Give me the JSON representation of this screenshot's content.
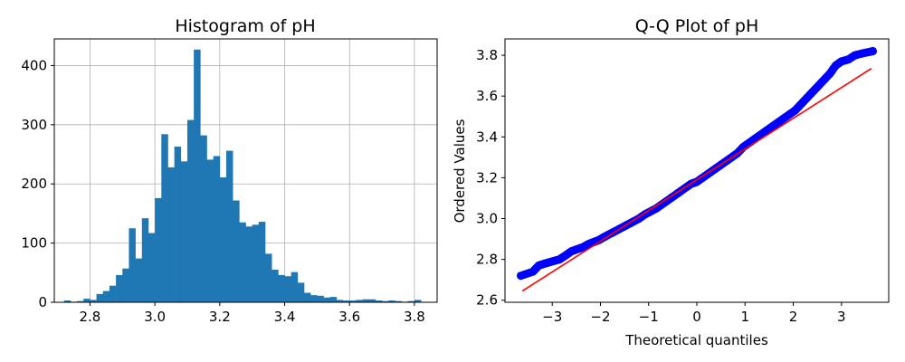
{
  "chart_data": [
    {
      "type": "bar",
      "title": "Histogram of pH",
      "xlabel": "",
      "ylabel": "",
      "xlim": [
        2.69,
        3.87
      ],
      "ylim": [
        0,
        445
      ],
      "grid": true,
      "xticks": [
        "2.8",
        "3.0",
        "3.2",
        "3.4",
        "3.6",
        "3.8"
      ],
      "yticks": [
        "0",
        "100",
        "200",
        "300",
        "400"
      ],
      "bin_edges": [
        2.72,
        2.74,
        2.76,
        2.78,
        2.8,
        2.82,
        2.84,
        2.86,
        2.88,
        2.9,
        2.92,
        2.94,
        2.96,
        2.98,
        3.0,
        3.02,
        3.04,
        3.06,
        3.08,
        3.1,
        3.12,
        3.14,
        3.16,
        3.18,
        3.2,
        3.22,
        3.24,
        3.26,
        3.28,
        3.3,
        3.32,
        3.34,
        3.36,
        3.38,
        3.4,
        3.42,
        3.44,
        3.46,
        3.48,
        3.5,
        3.52,
        3.54,
        3.56,
        3.58,
        3.6,
        3.62,
        3.64,
        3.66,
        3.68,
        3.7,
        3.72,
        3.74,
        3.76,
        3.78,
        3.8,
        3.82
      ],
      "values": [
        3,
        1,
        2,
        6,
        4,
        14,
        19,
        28,
        46,
        57,
        125,
        74,
        142,
        117,
        176,
        284,
        228,
        263,
        238,
        308,
        427,
        282,
        241,
        247,
        211,
        256,
        172,
        135,
        128,
        131,
        136,
        82,
        55,
        46,
        44,
        51,
        33,
        16,
        12,
        11,
        8,
        9,
        4,
        3,
        3,
        4,
        5,
        5,
        3,
        2,
        3,
        2,
        1,
        2,
        4
      ]
    },
    {
      "type": "scatter",
      "title": "Q-Q Plot of pH",
      "xlabel": "Theoretical quantiles",
      "ylabel": "Ordered Values",
      "xlim": [
        -3.98,
        3.98
      ],
      "ylim": [
        2.59,
        3.88
      ],
      "grid": false,
      "xticks": [
        "−3",
        "−2",
        "−1",
        "0",
        "1",
        "2",
        "3"
      ],
      "yticks": [
        "2.6",
        "2.8",
        "3.0",
        "3.2",
        "3.4",
        "3.6",
        "3.8"
      ],
      "points": [
        [
          -3.65,
          2.72
        ],
        [
          -3.4,
          2.74
        ],
        [
          -3.28,
          2.77
        ],
        [
          -3.15,
          2.78
        ],
        [
          -3.0,
          2.79
        ],
        [
          -2.85,
          2.8
        ],
        [
          -2.72,
          2.82
        ],
        [
          -2.6,
          2.84
        ],
        [
          -2.48,
          2.85
        ],
        [
          -2.36,
          2.86
        ],
        [
          -2.25,
          2.875
        ],
        [
          -2.14,
          2.885
        ],
        [
          -2.03,
          2.895
        ],
        [
          -1.92,
          2.91
        ],
        [
          -1.8,
          2.925
        ],
        [
          -1.68,
          2.94
        ],
        [
          -1.56,
          2.955
        ],
        [
          -1.44,
          2.97
        ],
        [
          -1.32,
          2.985
        ],
        [
          -1.2,
          3.0
        ],
        [
          -1.08,
          3.02
        ],
        [
          -0.96,
          3.035
        ],
        [
          -0.84,
          3.05
        ],
        [
          -0.72,
          3.07
        ],
        [
          -0.6,
          3.09
        ],
        [
          -0.48,
          3.11
        ],
        [
          -0.36,
          3.13
        ],
        [
          -0.24,
          3.15
        ],
        [
          -0.12,
          3.17
        ],
        [
          0.0,
          3.18
        ],
        [
          0.12,
          3.2
        ],
        [
          0.24,
          3.22
        ],
        [
          0.36,
          3.24
        ],
        [
          0.48,
          3.26
        ],
        [
          0.6,
          3.28
        ],
        [
          0.72,
          3.3
        ],
        [
          0.84,
          3.32
        ],
        [
          0.96,
          3.35
        ],
        [
          1.08,
          3.37
        ],
        [
          1.2,
          3.39
        ],
        [
          1.32,
          3.41
        ],
        [
          1.44,
          3.43
        ],
        [
          1.56,
          3.45
        ],
        [
          1.68,
          3.47
        ],
        [
          1.8,
          3.49
        ],
        [
          1.92,
          3.51
        ],
        [
          2.04,
          3.53
        ],
        [
          2.16,
          3.56
        ],
        [
          2.28,
          3.59
        ],
        [
          2.4,
          3.62
        ],
        [
          2.52,
          3.65
        ],
        [
          2.64,
          3.68
        ],
        [
          2.76,
          3.71
        ],
        [
          2.88,
          3.75
        ],
        [
          3.0,
          3.77
        ],
        [
          3.15,
          3.78
        ],
        [
          3.28,
          3.8
        ],
        [
          3.45,
          3.81
        ],
        [
          3.65,
          3.82
        ]
      ],
      "fit_line": {
        "x": [
          -3.62,
          3.62
        ],
        "y": [
          2.645,
          3.735
        ]
      },
      "marker_color": "#0000ff",
      "line_color": "#ff0000"
    }
  ],
  "colors": {
    "bar": "#1f77b4",
    "grid": "#b0b0b0",
    "axis": "#000000"
  }
}
